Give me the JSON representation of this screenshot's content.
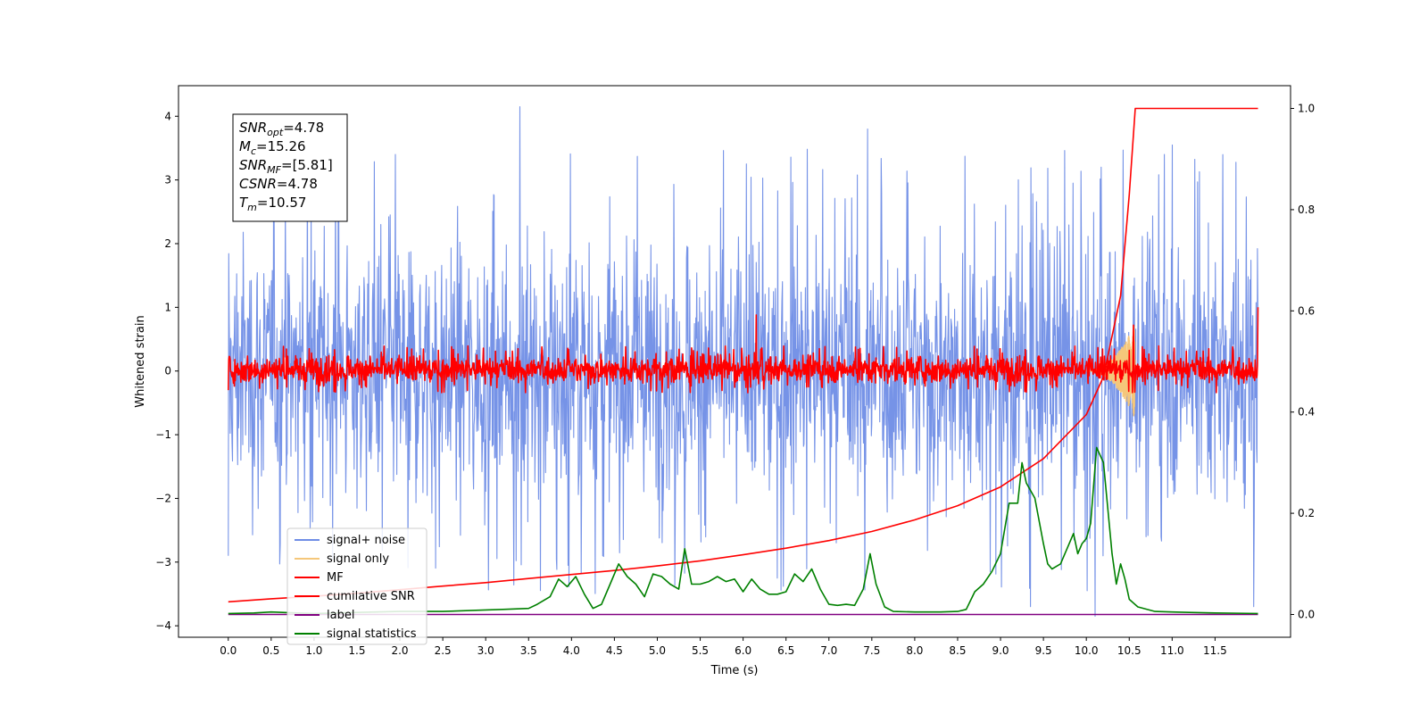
{
  "chart_data": {
    "type": "line",
    "title": "",
    "xlabel": "Time (s)",
    "ylabel": "Whitened strain",
    "xlim": [
      -0.58,
      12.38
    ],
    "ylim": [
      -4.18,
      4.48
    ],
    "ylim_right": [
      -0.045,
      1.045
    ],
    "xticks": [
      0.0,
      0.5,
      1.0,
      1.5,
      2.0,
      2.5,
      3.0,
      3.5,
      4.0,
      4.5,
      5.0,
      5.5,
      6.0,
      6.5,
      7.0,
      7.5,
      8.0,
      8.5,
      9.0,
      9.5,
      10.0,
      10.5,
      11.0,
      11.5
    ],
    "xtick_labels": [
      "0.0",
      "0.5",
      "1.0",
      "1.5",
      "2.0",
      "2.5",
      "3.0",
      "3.5",
      "4.0",
      "4.5",
      "5.0",
      "5.5",
      "6.0",
      "6.5",
      "7.0",
      "7.5",
      "8.0",
      "8.5",
      "9.0",
      "9.5",
      "10.0",
      "10.5",
      "11.0",
      "11.5"
    ],
    "yticks_left": [
      -4,
      -3,
      -2,
      -1,
      0,
      1,
      2,
      3,
      4
    ],
    "ytick_labels_left": [
      "−4",
      "−3",
      "−2",
      "−1",
      "0",
      "1",
      "2",
      "3",
      "4"
    ],
    "yticks_right": [
      0.0,
      0.2,
      0.4,
      0.6,
      0.8,
      1.0
    ],
    "ytick_labels_right": [
      "0.0",
      "0.2",
      "0.4",
      "0.6",
      "0.8",
      "1.0"
    ],
    "legend": {
      "placement": "lower-left",
      "entries": [
        {
          "label": "signal+ noise",
          "color": "#6f8de6"
        },
        {
          "label": "signal only",
          "color": "#f5c77a"
        },
        {
          "label": "MF",
          "color": "#ff0000"
        },
        {
          "label": "cumilative SNR",
          "color": "#ff0000"
        },
        {
          "label": "label",
          "color": "#800080"
        },
        {
          "label": "signal statistics",
          "color": "#008000"
        }
      ]
    },
    "annotation": [
      {
        "var": "SNR",
        "sub": "opt",
        "value": "=4.78"
      },
      {
        "var": "M",
        "sub": "c",
        "value": "=15.26"
      },
      {
        "var": "SNR",
        "sub": "MF",
        "value": "=[5.81]"
      },
      {
        "var": "CSNR",
        "sub": "",
        "value": "=4.78"
      },
      {
        "var": "T",
        "sub": "m",
        "value": "=10.57"
      }
    ],
    "series": [
      {
        "name": "signal+ noise",
        "axis": "left",
        "color": "#6f8de6",
        "kind": "noise",
        "x_range": [
          0.0,
          12.0
        ],
        "envelope": [
          -2.6,
          2.6
        ],
        "peaks": [
          [
            0.0,
            3.15
          ],
          [
            1.95,
            3.4
          ],
          [
            3.4,
            4.15
          ],
          [
            7.45,
            3.8
          ],
          [
            11.0,
            3.55
          ],
          [
            0.0,
            -2.9
          ],
          [
            9.35,
            -3.7
          ],
          [
            10.1,
            -3.85
          ],
          [
            11.95,
            -3.7
          ]
        ]
      },
      {
        "name": "signal only",
        "axis": "left",
        "color": "#f5c77a",
        "kind": "chirp",
        "x_range": [
          10.0,
          10.57
        ],
        "peak_amplitude": 0.75
      },
      {
        "name": "MF",
        "axis": "left",
        "color": "#ff0000",
        "kind": "noise",
        "x_range": [
          0.0,
          12.0
        ],
        "envelope": [
          -0.25,
          0.3
        ],
        "peaks": [
          [
            0.0,
            1.0
          ],
          [
            0.0,
            -0.3
          ],
          [
            6.15,
            0.88
          ],
          [
            10.55,
            0.72
          ],
          [
            12.0,
            1.0
          ]
        ]
      },
      {
        "name": "cumilative SNR",
        "axis": "right",
        "color": "#ff0000",
        "x": [
          0.0,
          0.5,
          1.0,
          1.5,
          2.0,
          2.5,
          3.0,
          3.5,
          4.0,
          4.5,
          5.0,
          5.5,
          6.0,
          6.5,
          7.0,
          7.5,
          8.0,
          8.5,
          9.0,
          9.5,
          10.0,
          10.2,
          10.4,
          10.5,
          10.57,
          10.6,
          11.0,
          11.5,
          12.0
        ],
        "values": [
          0.025,
          0.031,
          0.036,
          0.042,
          0.049,
          0.056,
          0.063,
          0.071,
          0.079,
          0.087,
          0.096,
          0.106,
          0.118,
          0.131,
          0.146,
          0.164,
          0.187,
          0.215,
          0.252,
          0.308,
          0.395,
          0.47,
          0.63,
          0.83,
          1.0,
          1.0,
          1.0,
          1.0,
          1.0
        ]
      },
      {
        "name": "label",
        "axis": "right",
        "color": "#800080",
        "x": [
          0.0,
          12.0
        ],
        "values": [
          0.0,
          0.0
        ]
      },
      {
        "name": "signal statistics",
        "axis": "right",
        "color": "#008000",
        "x": [
          0.0,
          0.3,
          0.5,
          0.8,
          1.0,
          1.5,
          2.0,
          2.5,
          3.0,
          3.2,
          3.5,
          3.6,
          3.75,
          3.85,
          3.95,
          4.05,
          4.15,
          4.25,
          4.35,
          4.45,
          4.55,
          4.65,
          4.75,
          4.85,
          4.95,
          5.05,
          5.15,
          5.25,
          5.32,
          5.4,
          5.5,
          5.6,
          5.7,
          5.8,
          5.9,
          6.0,
          6.1,
          6.2,
          6.3,
          6.4,
          6.5,
          6.6,
          6.7,
          6.8,
          6.9,
          7.0,
          7.1,
          7.2,
          7.3,
          7.4,
          7.48,
          7.55,
          7.65,
          7.75,
          8.0,
          8.3,
          8.5,
          8.6,
          8.7,
          8.8,
          8.9,
          9.0,
          9.1,
          9.2,
          9.25,
          9.3,
          9.4,
          9.5,
          9.55,
          9.6,
          9.7,
          9.8,
          9.85,
          9.9,
          9.95,
          10.0,
          10.05,
          10.12,
          10.2,
          10.3,
          10.35,
          10.4,
          10.45,
          10.5,
          10.6,
          10.8,
          11.0,
          11.2,
          11.5,
          12.0
        ],
        "values": [
          0.002,
          0.003,
          0.005,
          0.003,
          0.002,
          0.004,
          0.006,
          0.006,
          0.009,
          0.01,
          0.012,
          0.02,
          0.035,
          0.07,
          0.055,
          0.075,
          0.04,
          0.012,
          0.02,
          0.06,
          0.1,
          0.075,
          0.06,
          0.035,
          0.08,
          0.075,
          0.06,
          0.05,
          0.13,
          0.06,
          0.06,
          0.065,
          0.075,
          0.065,
          0.07,
          0.045,
          0.07,
          0.05,
          0.04,
          0.04,
          0.045,
          0.08,
          0.065,
          0.09,
          0.05,
          0.02,
          0.018,
          0.02,
          0.018,
          0.05,
          0.12,
          0.06,
          0.015,
          0.006,
          0.005,
          0.005,
          0.006,
          0.01,
          0.045,
          0.06,
          0.085,
          0.12,
          0.22,
          0.22,
          0.3,
          0.26,
          0.23,
          0.14,
          0.1,
          0.09,
          0.1,
          0.14,
          0.16,
          0.12,
          0.14,
          0.15,
          0.18,
          0.33,
          0.3,
          0.12,
          0.06,
          0.1,
          0.07,
          0.03,
          0.015,
          0.006,
          0.005,
          0.004,
          0.003,
          0.002
        ]
      }
    ]
  }
}
